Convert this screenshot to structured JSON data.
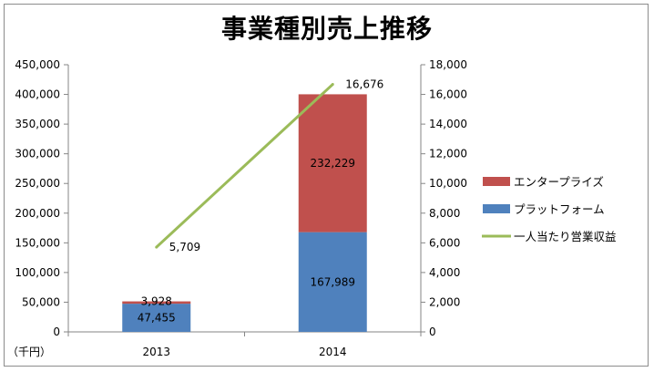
{
  "chart_data": {
    "type": "bar",
    "title": "事業種別売上推移",
    "unit_note": "（千円）",
    "categories": [
      "2013",
      "2014"
    ],
    "series": [
      {
        "name": "プラットフォーム",
        "kind": "bar",
        "stack": "sales",
        "axis": "left",
        "color": "#4f81bd",
        "values": [
          47455,
          167989
        ],
        "labels": [
          "47,455",
          "167,989"
        ]
      },
      {
        "name": "エンタープライズ",
        "kind": "bar",
        "stack": "sales",
        "axis": "left",
        "color": "#c0504d",
        "values": [
          3928,
          232229
        ],
        "labels": [
          "3,928",
          "232,229"
        ]
      },
      {
        "name": "一人当たり営業収益",
        "kind": "line",
        "axis": "right",
        "color": "#9bbb59",
        "values": [
          5709,
          16676
        ],
        "labels": [
          "5,709",
          "16,676"
        ]
      }
    ],
    "y_left": {
      "min": 0,
      "max": 450000,
      "ticks": [
        "0",
        "50,000",
        "100,000",
        "150,000",
        "200,000",
        "250,000",
        "300,000",
        "350,000",
        "400,000",
        "450,000"
      ]
    },
    "y_right": {
      "min": 0,
      "max": 18000,
      "ticks": [
        "0",
        "2,000",
        "4,000",
        "6,000",
        "8,000",
        "10,000",
        "12,000",
        "14,000",
        "16,000",
        "18,000"
      ]
    },
    "legend_position": "right",
    "grid": false
  }
}
